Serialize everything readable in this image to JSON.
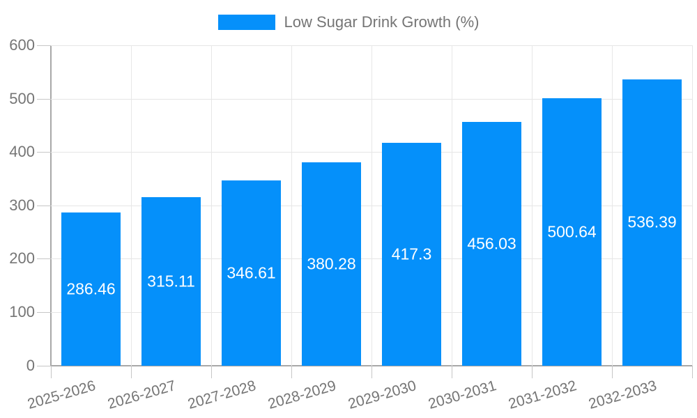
{
  "legend": {
    "label": "Low Sugar Drink Growth (%)"
  },
  "chart_data": {
    "type": "bar",
    "title": "Low Sugar Drink Growth (%)",
    "categories": [
      "2025-2026",
      "2026-2027",
      "2027-2028",
      "2028-2029",
      "2029-2030",
      "2030-2031",
      "2031-2032",
      "2032-2033"
    ],
    "values": [
      286.46,
      315.11,
      346.61,
      380.28,
      417.3,
      456.03,
      500.64,
      536.39
    ],
    "value_labels": [
      "286.46",
      "315.11",
      "346.61",
      "380.28",
      "417.3",
      "456.03",
      "500.64",
      "536.39"
    ],
    "xlabel": "",
    "ylabel": "",
    "ylim": [
      0,
      600
    ],
    "y_ticks": [
      0,
      100,
      200,
      300,
      400,
      500,
      600
    ],
    "grid": true,
    "legend_position": "top-center",
    "bar_color": "#0590fa",
    "value_label_color": "#ffffff",
    "axis_text_color": "#757575",
    "grid_color": "#e5e5e5",
    "axis_line_color": "#a8a8a8"
  }
}
